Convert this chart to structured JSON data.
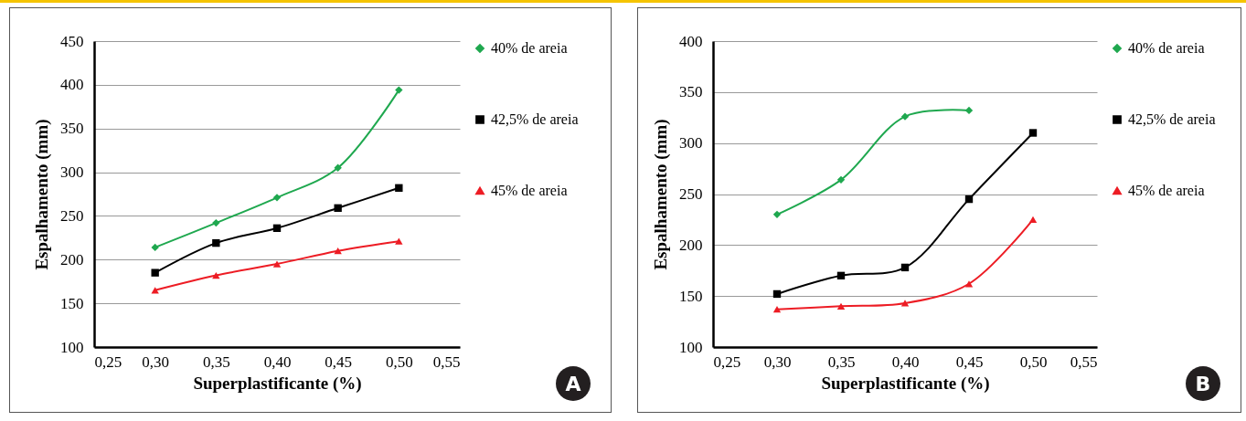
{
  "chart_data": [
    {
      "type": "line",
      "xlabel": "Superplastificante (%)",
      "ylabel": "Espalhamento (mm)",
      "annotations": [
        "A"
      ],
      "x": [
        0.3,
        0.35,
        0.4,
        0.45,
        0.5
      ],
      "series": [
        {
          "name": "40% de areia",
          "color": "#1fa84f",
          "marker": "diamond",
          "values": [
            214,
            242,
            271,
            305,
            394
          ]
        },
        {
          "name": "42,5% de areia",
          "color": "#000000",
          "marker": "square",
          "values": [
            185,
            219,
            236,
            259,
            282
          ]
        },
        {
          "name": "45% de areia",
          "color": "#ed1c24",
          "marker": "triangle",
          "values": [
            165,
            182,
            195,
            210,
            221
          ]
        }
      ],
      "xlim": [
        0.25,
        0.55
      ],
      "xticks": [
        {
          "value": 0.25,
          "label": "0,25"
        },
        {
          "value": 0.3,
          "label": "0,30"
        },
        {
          "value": 0.35,
          "label": "0,35"
        },
        {
          "value": 0.4,
          "label": "0,40"
        },
        {
          "value": 0.45,
          "label": "0,45"
        },
        {
          "value": 0.5,
          "label": "0,50"
        },
        {
          "value": 0.55,
          "label": "0,55"
        }
      ],
      "ylim": [
        100,
        450
      ],
      "yticks": [
        100,
        150,
        200,
        250,
        300,
        350,
        400,
        450
      ],
      "grid": "y",
      "legend": "right",
      "line_style": "solid"
    },
    {
      "type": "line",
      "xlabel": "Superplastificante (%)",
      "ylabel": "Espalhamento (mm)",
      "annotations": [
        "B"
      ],
      "x": [
        0.3,
        0.35,
        0.4,
        0.45,
        0.5
      ],
      "series": [
        {
          "name": "40% de areia",
          "color": "#1fa84f",
          "marker": "diamond",
          "values": [
            230,
            264,
            326,
            332,
            null
          ]
        },
        {
          "name": "42,5% de areia",
          "color": "#000000",
          "marker": "square",
          "values": [
            152,
            170,
            178,
            245,
            310
          ]
        },
        {
          "name": "45% de areia",
          "color": "#ed1c24",
          "marker": "triangle",
          "values": [
            137,
            140,
            143,
            162,
            225
          ]
        }
      ],
      "xlim": [
        0.25,
        0.55
      ],
      "xticks": [
        {
          "value": 0.25,
          "label": "0,25"
        },
        {
          "value": 0.3,
          "label": "0,30"
        },
        {
          "value": 0.35,
          "label": "0,35"
        },
        {
          "value": 0.4,
          "label": "0,40"
        },
        {
          "value": 0.45,
          "label": "0,45"
        },
        {
          "value": 0.5,
          "label": "0,50"
        },
        {
          "value": 0.55,
          "label": "0,55"
        }
      ],
      "ylim": [
        100,
        400
      ],
      "yticks": [
        100,
        150,
        200,
        250,
        300,
        350,
        400
      ],
      "grid": "y",
      "legend": "right",
      "line_style": "solid"
    }
  ]
}
